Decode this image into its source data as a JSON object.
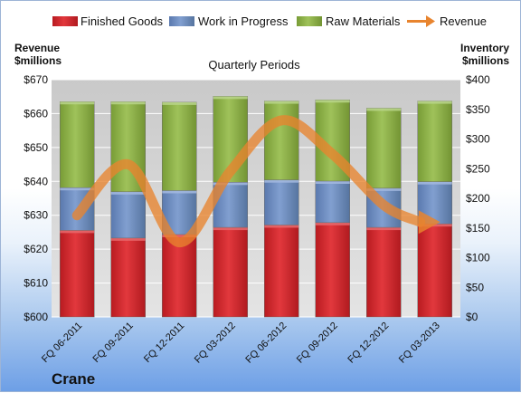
{
  "chart_data": {
    "type": "bar",
    "title": "Quarterly Periods",
    "company": "Crane",
    "categories": [
      "FQ 06-2011",
      "FQ 09-2011",
      "FQ 12-2011",
      "FQ 03-2012",
      "FQ 06-2012",
      "FQ 09-2012",
      "FQ 12-2012",
      "FQ 03-2013"
    ],
    "left_axis": {
      "label_line1": "Revenue",
      "label_line2": "$millions",
      "min": 600,
      "max": 670,
      "step": 10,
      "ticks": [
        "$600",
        "$610",
        "$620",
        "$630",
        "$640",
        "$650",
        "$660",
        "$670"
      ]
    },
    "right_axis": {
      "label_line1": "Inventory",
      "label_line2": "$millions",
      "min": 0,
      "max": 400,
      "step": 50,
      "ticks": [
        "$0",
        "$50",
        "$100",
        "$150",
        "$200",
        "$250",
        "$300",
        "$350",
        "$400"
      ]
    },
    "series": [
      {
        "name": "Finished Goods",
        "axis": "right",
        "color": "#d7272c",
        "values": [
          146,
          133,
          139,
          151,
          155,
          159,
          151,
          157
        ]
      },
      {
        "name": "Work in Progress",
        "axis": "right",
        "color": "#6f8fc4",
        "values": [
          72,
          78,
          74,
          76,
          76,
          70,
          66,
          71
        ]
      },
      {
        "name": "Raw Materials",
        "axis": "right",
        "color": "#8fb24a",
        "values": [
          145,
          152,
          149,
          145,
          133,
          137,
          135,
          136
        ]
      },
      {
        "name": "Revenue",
        "axis": "left",
        "color": "#e8842e",
        "type": "line",
        "values": [
          630,
          645,
          622,
          643,
          658,
          648,
          633,
          628
        ]
      }
    ],
    "legend_position": "top",
    "grid": true
  }
}
